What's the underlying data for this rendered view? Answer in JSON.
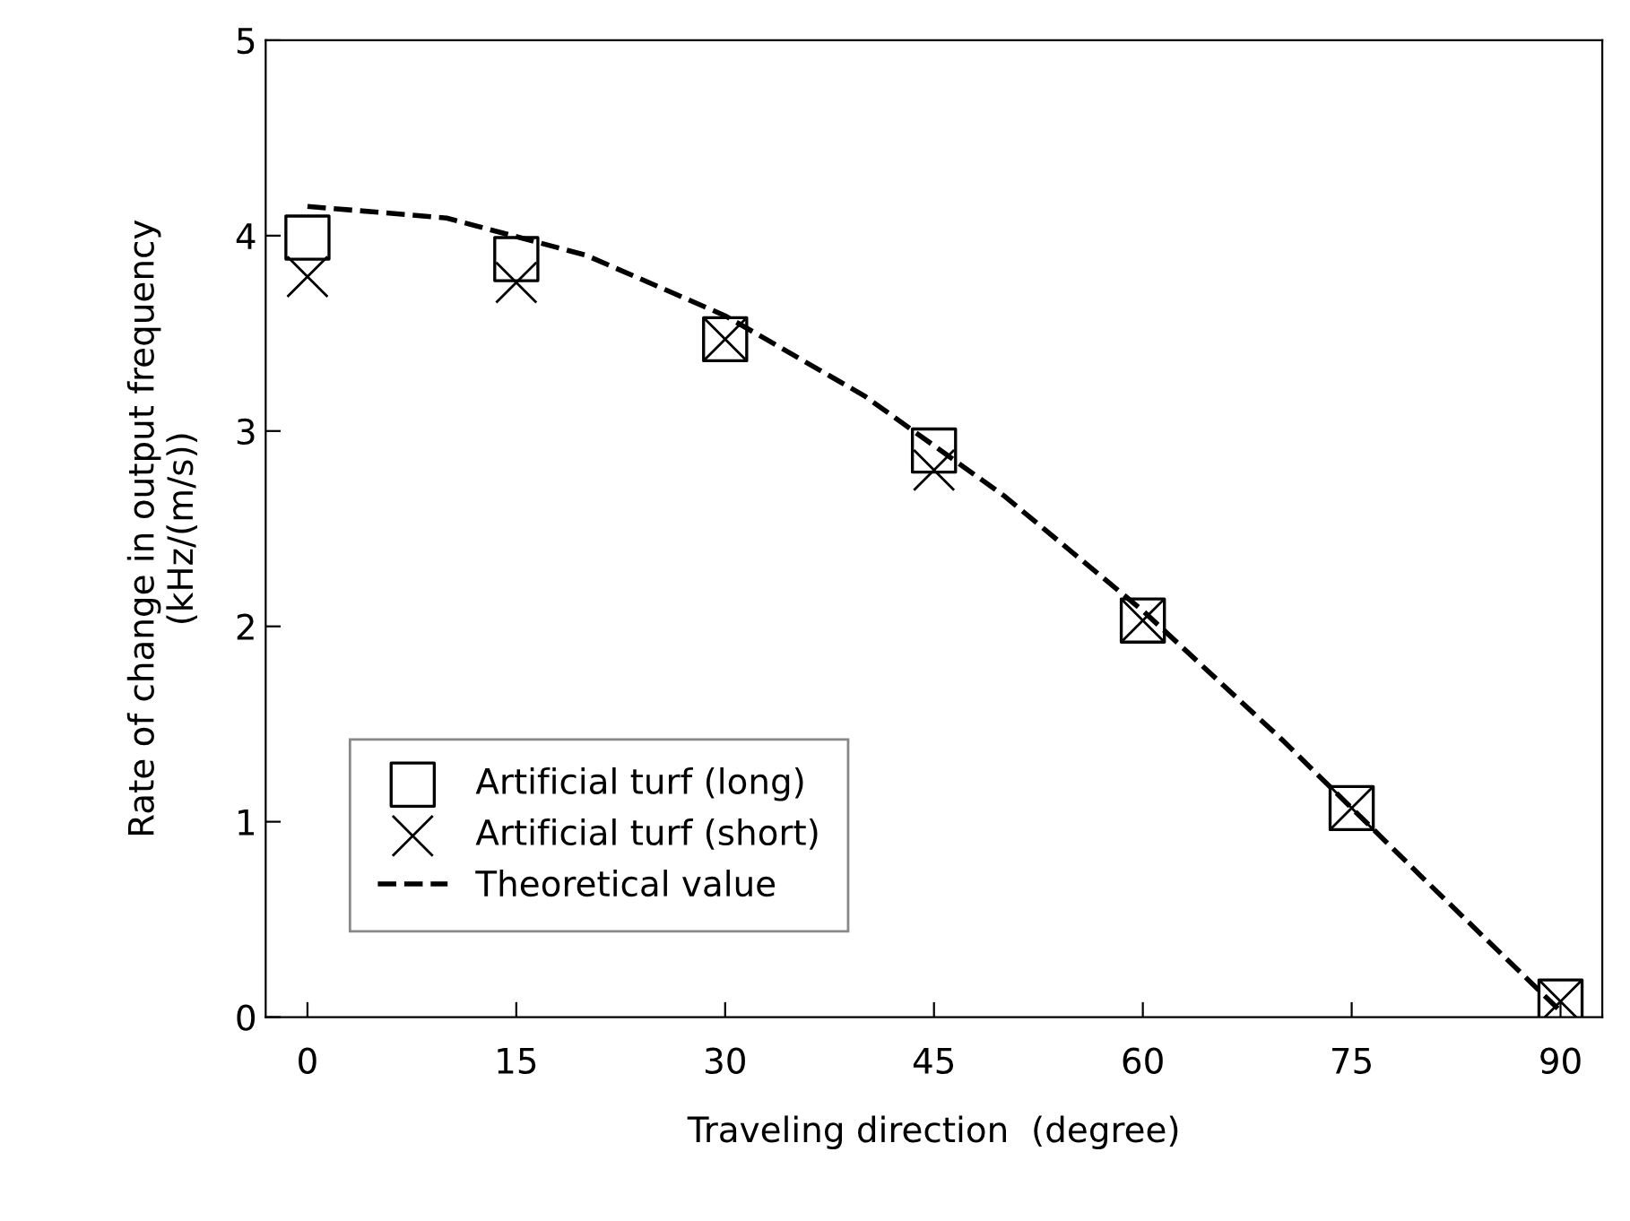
{
  "chart_data": {
    "type": "scatter",
    "xlabel": "Traveling direction  (degree)",
    "ylabel": "Rate of change in output frequency\n(kHz/(m/s))",
    "x": [
      0,
      15,
      30,
      45,
      60,
      75,
      90
    ],
    "series": [
      {
        "name": "Artificial turf (long)",
        "color": "#000000",
        "marker": "square",
        "values": [
          3.99,
          3.88,
          3.47,
          2.9,
          2.03,
          1.07,
          0.08
        ]
      },
      {
        "name": "Artificial turf (short)",
        "color": "#000000",
        "marker": "cross",
        "values": [
          3.79,
          3.76,
          3.47,
          2.8,
          2.03,
          1.07,
          0.08
        ]
      },
      {
        "name": "Theoretical value",
        "type": "line",
        "color": "#000000",
        "line_style": "dashed",
        "marker": "none",
        "x": [
          0,
          10,
          20,
          30,
          40,
          50,
          60,
          70,
          80,
          90
        ],
        "values": [
          4.15,
          4.09,
          3.9,
          3.59,
          3.18,
          2.67,
          2.08,
          1.42,
          0.72,
          0.03
        ]
      }
    ],
    "xlim": [
      -3,
      93
    ],
    "xticks": [
      0,
      15,
      30,
      45,
      60,
      75,
      90
    ],
    "ylim": [
      0,
      5
    ],
    "yticks": [
      0,
      1,
      2,
      3,
      4,
      5
    ],
    "grid": false,
    "legend": "bottom left"
  }
}
